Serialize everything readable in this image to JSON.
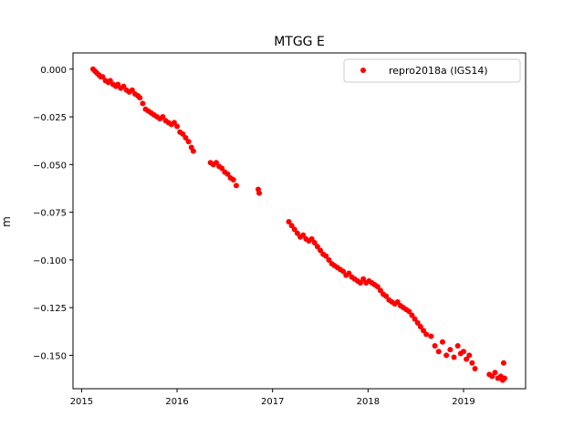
{
  "chart_data": {
    "type": "scatter",
    "title": "MTGG E",
    "xlabel": "",
    "ylabel": "m",
    "xlim": [
      2014.91,
      2019.65
    ],
    "ylim": [
      -0.1675,
      0.0085
    ],
    "grid": false,
    "legend_position": "top-right",
    "x_ticks": [
      2015,
      2016,
      2017,
      2018,
      2019
    ],
    "x_tick_labels": [
      "2015",
      "2016",
      "2017",
      "2018",
      "2019"
    ],
    "y_ticks": [
      0.0,
      -0.025,
      -0.05,
      -0.075,
      -0.1,
      -0.125,
      -0.15
    ],
    "y_tick_labels": [
      "0.000",
      "−0.025",
      "−0.050",
      "−0.075",
      "−0.100",
      "−0.125",
      "−0.150"
    ],
    "series": [
      {
        "name": "repro2018a (IGS14)",
        "color": "#ff0000",
        "marker": "circle",
        "points": [
          [
            2015.12,
            0.0
          ],
          [
            2015.14,
            -0.001
          ],
          [
            2015.16,
            -0.002
          ],
          [
            2015.18,
            -0.003
          ],
          [
            2015.2,
            -0.004
          ],
          [
            2015.22,
            -0.004
          ],
          [
            2015.25,
            -0.006
          ],
          [
            2015.28,
            -0.007
          ],
          [
            2015.3,
            -0.006
          ],
          [
            2015.33,
            -0.008
          ],
          [
            2015.36,
            -0.009
          ],
          [
            2015.38,
            -0.008
          ],
          [
            2015.41,
            -0.01
          ],
          [
            2015.44,
            -0.009
          ],
          [
            2015.47,
            -0.011
          ],
          [
            2015.5,
            -0.012
          ],
          [
            2015.53,
            -0.011
          ],
          [
            2015.56,
            -0.013
          ],
          [
            2015.59,
            -0.014
          ],
          [
            2015.61,
            -0.015
          ],
          [
            2015.64,
            -0.018
          ],
          [
            2015.67,
            -0.021
          ],
          [
            2015.7,
            -0.022
          ],
          [
            2015.73,
            -0.023
          ],
          [
            2015.76,
            -0.024
          ],
          [
            2015.79,
            -0.025
          ],
          [
            2015.82,
            -0.026
          ],
          [
            2015.85,
            -0.025
          ],
          [
            2015.88,
            -0.027
          ],
          [
            2015.91,
            -0.028
          ],
          [
            2015.94,
            -0.029
          ],
          [
            2015.97,
            -0.028
          ],
          [
            2016.0,
            -0.03
          ],
          [
            2016.03,
            -0.033
          ],
          [
            2016.06,
            -0.034
          ],
          [
            2016.09,
            -0.036
          ],
          [
            2016.12,
            -0.038
          ],
          [
            2016.15,
            -0.041
          ],
          [
            2016.17,
            -0.043
          ],
          [
            2016.35,
            -0.049
          ],
          [
            2016.38,
            -0.05
          ],
          [
            2016.41,
            -0.049
          ],
          [
            2016.44,
            -0.051
          ],
          [
            2016.47,
            -0.052
          ],
          [
            2016.5,
            -0.054
          ],
          [
            2016.53,
            -0.055
          ],
          [
            2016.56,
            -0.057
          ],
          [
            2016.59,
            -0.058
          ],
          [
            2016.62,
            -0.061
          ],
          [
            2016.85,
            -0.063
          ],
          [
            2016.86,
            -0.065
          ],
          [
            2017.17,
            -0.08
          ],
          [
            2017.2,
            -0.082
          ],
          [
            2017.23,
            -0.084
          ],
          [
            2017.26,
            -0.086
          ],
          [
            2017.29,
            -0.088
          ],
          [
            2017.32,
            -0.087
          ],
          [
            2017.35,
            -0.089
          ],
          [
            2017.38,
            -0.09
          ],
          [
            2017.41,
            -0.089
          ],
          [
            2017.44,
            -0.091
          ],
          [
            2017.47,
            -0.093
          ],
          [
            2017.5,
            -0.095
          ],
          [
            2017.53,
            -0.097
          ],
          [
            2017.56,
            -0.098
          ],
          [
            2017.59,
            -0.1
          ],
          [
            2017.62,
            -0.102
          ],
          [
            2017.65,
            -0.103
          ],
          [
            2017.68,
            -0.104
          ],
          [
            2017.71,
            -0.105
          ],
          [
            2017.74,
            -0.106
          ],
          [
            2017.77,
            -0.108
          ],
          [
            2017.8,
            -0.107
          ],
          [
            2017.83,
            -0.109
          ],
          [
            2017.86,
            -0.11
          ],
          [
            2017.89,
            -0.111
          ],
          [
            2017.92,
            -0.112
          ],
          [
            2017.95,
            -0.11
          ],
          [
            2017.98,
            -0.112
          ],
          [
            2018.01,
            -0.111
          ],
          [
            2018.04,
            -0.112
          ],
          [
            2018.07,
            -0.113
          ],
          [
            2018.1,
            -0.114
          ],
          [
            2018.13,
            -0.116
          ],
          [
            2018.16,
            -0.118
          ],
          [
            2018.19,
            -0.119
          ],
          [
            2018.22,
            -0.121
          ],
          [
            2018.25,
            -0.122
          ],
          [
            2018.28,
            -0.123
          ],
          [
            2018.31,
            -0.122
          ],
          [
            2018.34,
            -0.124
          ],
          [
            2018.37,
            -0.125
          ],
          [
            2018.4,
            -0.126
          ],
          [
            2018.43,
            -0.127
          ],
          [
            2018.46,
            -0.129
          ],
          [
            2018.49,
            -0.131
          ],
          [
            2018.52,
            -0.133
          ],
          [
            2018.55,
            -0.135
          ],
          [
            2018.58,
            -0.137
          ],
          [
            2018.61,
            -0.139
          ],
          [
            2018.66,
            -0.14
          ],
          [
            2018.7,
            -0.145
          ],
          [
            2018.74,
            -0.148
          ],
          [
            2018.78,
            -0.143
          ],
          [
            2018.82,
            -0.15
          ],
          [
            2018.86,
            -0.147
          ],
          [
            2018.9,
            -0.151
          ],
          [
            2018.94,
            -0.145
          ],
          [
            2018.97,
            -0.149
          ],
          [
            2019.0,
            -0.148
          ],
          [
            2019.03,
            -0.152
          ],
          [
            2019.06,
            -0.15
          ],
          [
            2019.09,
            -0.154
          ],
          [
            2019.12,
            -0.157
          ],
          [
            2019.27,
            -0.16
          ],
          [
            2019.3,
            -0.161
          ],
          [
            2019.33,
            -0.159
          ],
          [
            2019.36,
            -0.162
          ],
          [
            2019.39,
            -0.161
          ],
          [
            2019.41,
            -0.163
          ],
          [
            2019.42,
            -0.154
          ],
          [
            2019.43,
            -0.162
          ]
        ]
      }
    ]
  }
}
